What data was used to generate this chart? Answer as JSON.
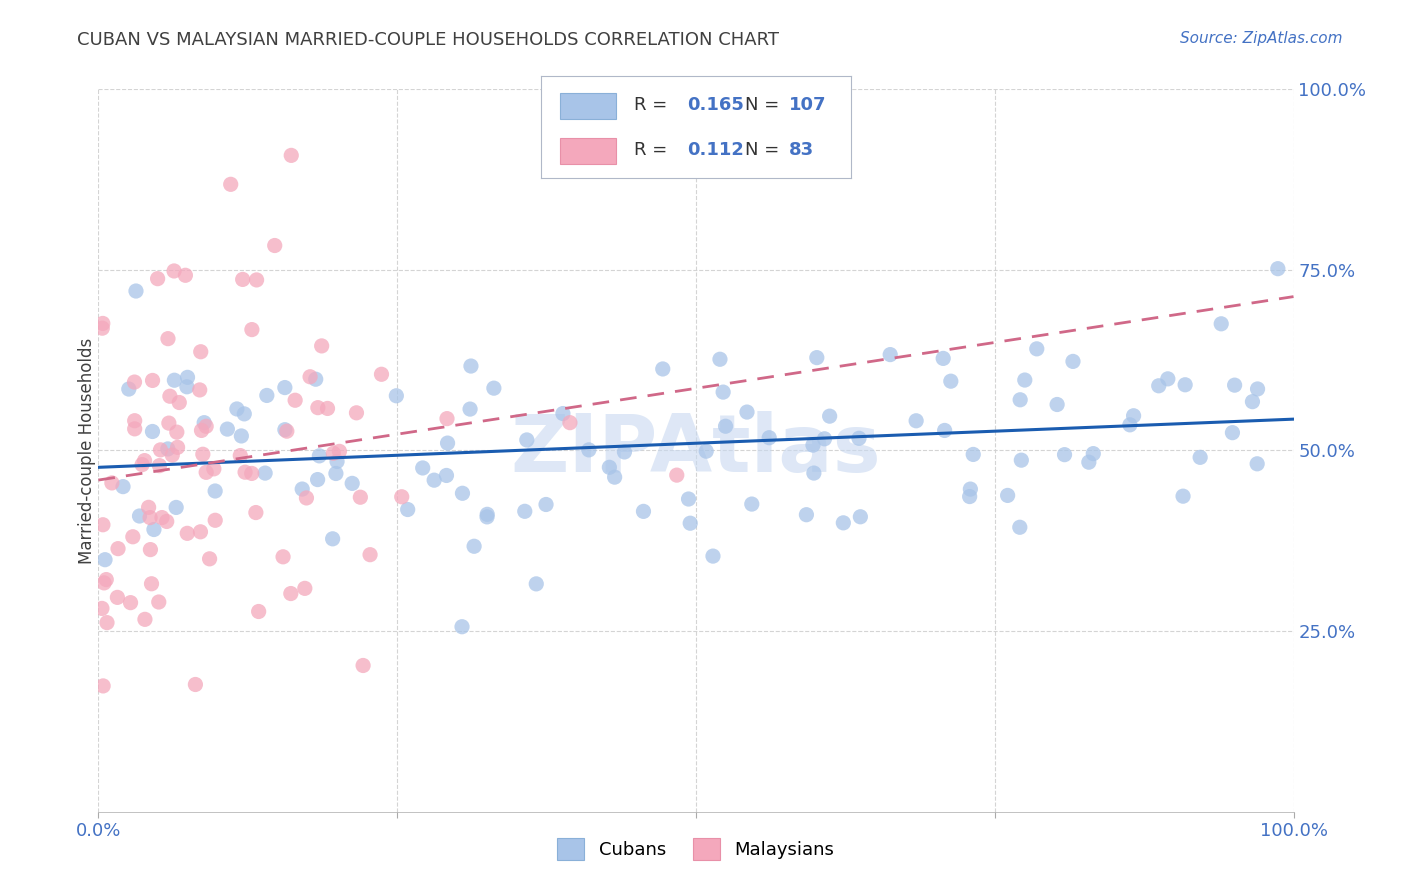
{
  "title": "CUBAN VS MALAYSIAN MARRIED-COUPLE HOUSEHOLDS CORRELATION CHART",
  "source": "Source: ZipAtlas.com",
  "ylabel": "Married-couple Households",
  "ytick_labels": [
    "25.0%",
    "50.0%",
    "75.0%",
    "100.0%"
  ],
  "ytick_values": [
    0.25,
    0.5,
    0.75,
    1.0
  ],
  "xtick_labels": [
    "0.0%",
    "100.0%"
  ],
  "xtick_values": [
    0.0,
    1.0
  ],
  "legend_cuban_r": "0.165",
  "legend_cuban_n": "107",
  "legend_malaysian_r": "0.112",
  "legend_malaysian_n": "83",
  "cuban_color": "#a8c4e8",
  "malaysian_color": "#f4a8bc",
  "cuban_line_color": "#1a5cb0",
  "malaysian_line_color": "#d06888",
  "watermark": "ZIPAtlas",
  "watermark_color": "#c8d8f0",
  "background_color": "#ffffff",
  "title_color": "#404040",
  "source_color": "#4472c4",
  "tick_label_color": "#4472c4",
  "grid_color": "#d0d0d0",
  "legend_border_color": "#b0b8c8",
  "cuban_seed": 42,
  "malaysian_seed": 7,
  "cuban_R": 0.165,
  "malaysian_R": 0.112,
  "cuban_N": 107,
  "malaysian_N": 83,
  "xlim": [
    0,
    1
  ],
  "ylim": [
    0,
    1
  ]
}
